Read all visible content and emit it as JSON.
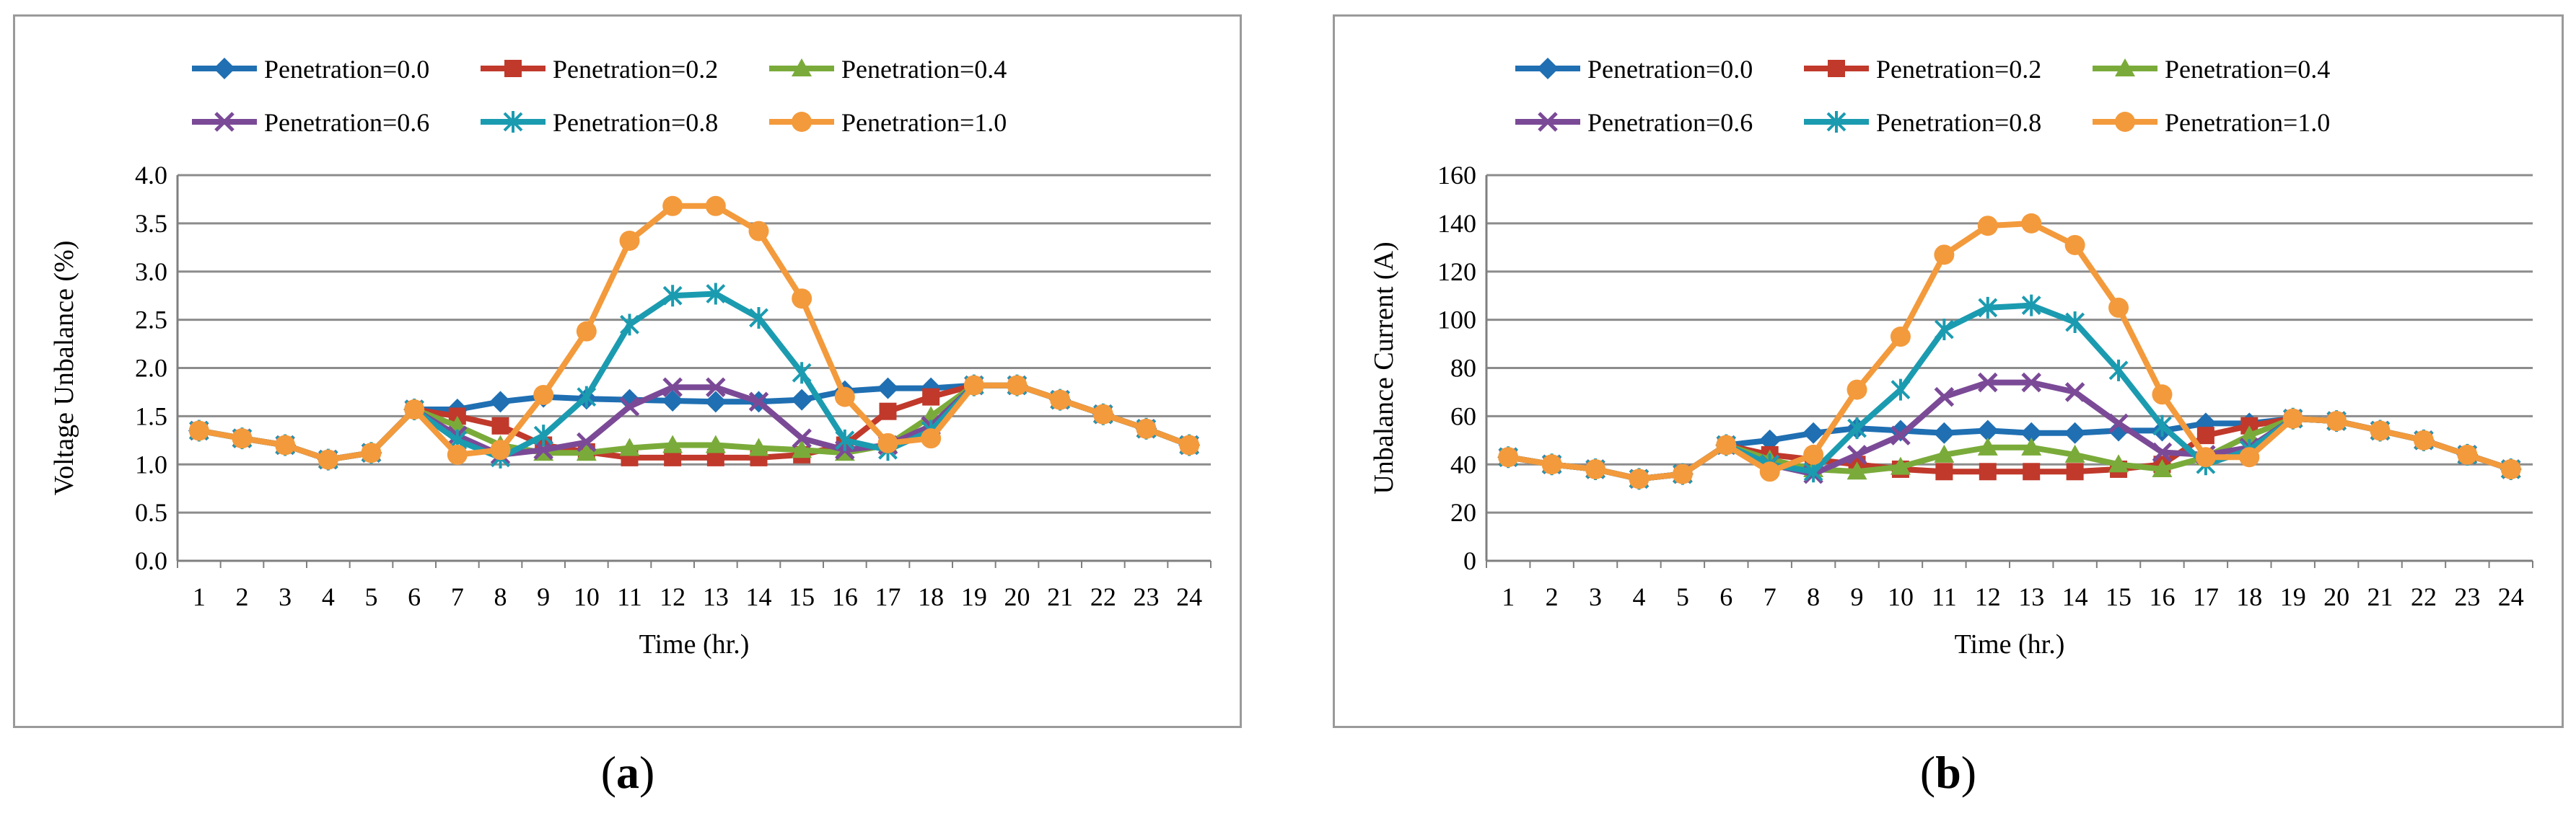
{
  "chart_data": [
    {
      "type": "line",
      "id": "a",
      "caption": "a",
      "xlabel": "Time (hr.)",
      "ylabel": "Voltage Unbalance (%)",
      "ylim": [
        0,
        4
      ],
      "yticks": [
        "0.0",
        "0.5",
        "1.0",
        "1.5",
        "2.0",
        "2.5",
        "3.0",
        "3.5",
        "4.0"
      ],
      "categories": [
        "1",
        "2",
        "3",
        "4",
        "5",
        "6",
        "7",
        "8",
        "9",
        "10",
        "11",
        "12",
        "13",
        "14",
        "15",
        "16",
        "17",
        "18",
        "19",
        "20",
        "21",
        "22",
        "23",
        "24"
      ],
      "grid": true,
      "legend_position": "top",
      "series": [
        {
          "name": "Penetration=0.0",
          "color": "#1f6fb2",
          "marker": "diamond",
          "values": [
            1.35,
            1.27,
            1.2,
            1.05,
            1.12,
            1.57,
            1.57,
            1.65,
            1.7,
            1.68,
            1.67,
            1.66,
            1.65,
            1.65,
            1.67,
            1.76,
            1.79,
            1.79,
            1.82,
            1.82,
            1.67,
            1.52,
            1.37,
            1.2
          ]
        },
        {
          "name": "Penetration=0.2",
          "color": "#c0392b",
          "marker": "square",
          "values": [
            1.35,
            1.27,
            1.2,
            1.05,
            1.12,
            1.57,
            1.5,
            1.4,
            1.2,
            1.13,
            1.07,
            1.07,
            1.07,
            1.07,
            1.1,
            1.2,
            1.55,
            1.7,
            1.82,
            1.82,
            1.67,
            1.52,
            1.37,
            1.2
          ]
        },
        {
          "name": "Penetration=0.4",
          "color": "#7aab3a",
          "marker": "triangle",
          "values": [
            1.35,
            1.27,
            1.2,
            1.05,
            1.12,
            1.57,
            1.4,
            1.2,
            1.12,
            1.12,
            1.17,
            1.2,
            1.2,
            1.17,
            1.15,
            1.12,
            1.2,
            1.5,
            1.82,
            1.82,
            1.67,
            1.52,
            1.37,
            1.2
          ]
        },
        {
          "name": "Penetration=0.6",
          "color": "#7b4a97",
          "marker": "x",
          "values": [
            1.35,
            1.27,
            1.2,
            1.05,
            1.12,
            1.57,
            1.3,
            1.1,
            1.15,
            1.23,
            1.6,
            1.8,
            1.8,
            1.65,
            1.27,
            1.15,
            1.2,
            1.4,
            1.82,
            1.82,
            1.67,
            1.52,
            1.37,
            1.2
          ]
        },
        {
          "name": "Penetration=0.8",
          "color": "#1b9bb0",
          "marker": "star",
          "values": [
            1.35,
            1.27,
            1.2,
            1.05,
            1.12,
            1.57,
            1.25,
            1.07,
            1.3,
            1.7,
            2.45,
            2.75,
            2.77,
            2.52,
            1.95,
            1.25,
            1.15,
            1.35,
            1.82,
            1.82,
            1.67,
            1.52,
            1.37,
            1.2
          ]
        },
        {
          "name": "Penetration=1.0",
          "color": "#f39a3c",
          "marker": "circle",
          "values": [
            1.35,
            1.27,
            1.2,
            1.05,
            1.12,
            1.57,
            1.1,
            1.15,
            1.72,
            2.38,
            3.32,
            3.68,
            3.68,
            3.42,
            2.72,
            1.7,
            1.22,
            1.27,
            1.82,
            1.82,
            1.67,
            1.52,
            1.37,
            1.2
          ]
        }
      ]
    },
    {
      "type": "line",
      "id": "b",
      "caption": "b",
      "xlabel": "Time (hr.)",
      "ylabel": "Unbalance Current (A)",
      "ylim": [
        0,
        160
      ],
      "yticks": [
        "0",
        "20",
        "40",
        "60",
        "80",
        "100",
        "120",
        "140",
        "160"
      ],
      "categories": [
        "1",
        "2",
        "3",
        "4",
        "5",
        "6",
        "7",
        "8",
        "9",
        "10",
        "11",
        "12",
        "13",
        "14",
        "15",
        "16",
        "17",
        "18",
        "19",
        "20",
        "21",
        "22",
        "23",
        "24"
      ],
      "grid": true,
      "legend_position": "top",
      "series": [
        {
          "name": "Penetration=0.0",
          "color": "#1f6fb2",
          "marker": "diamond",
          "values": [
            43,
            40,
            38,
            34,
            36,
            48,
            50,
            53,
            55,
            54,
            53,
            54,
            53,
            53,
            54,
            54,
            57,
            57,
            59,
            58,
            54,
            50,
            44,
            38
          ]
        },
        {
          "name": "Penetration=0.2",
          "color": "#c0392b",
          "marker": "square",
          "values": [
            43,
            40,
            38,
            34,
            36,
            48,
            44,
            42,
            40,
            38,
            37,
            37,
            37,
            37,
            38,
            40,
            52,
            56,
            59,
            58,
            54,
            50,
            44,
            38
          ]
        },
        {
          "name": "Penetration=0.4",
          "color": "#7aab3a",
          "marker": "triangle",
          "values": [
            43,
            40,
            38,
            34,
            36,
            48,
            42,
            38,
            37,
            39,
            44,
            47,
            47,
            44,
            40,
            38,
            43,
            52,
            59,
            58,
            54,
            50,
            44,
            38
          ]
        },
        {
          "name": "Penetration=0.6",
          "color": "#7b4a97",
          "marker": "x",
          "values": [
            43,
            40,
            38,
            34,
            36,
            48,
            40,
            36,
            44,
            52,
            68,
            74,
            74,
            70,
            57,
            45,
            44,
            47,
            59,
            58,
            54,
            50,
            44,
            38
          ]
        },
        {
          "name": "Penetration=0.8",
          "color": "#1b9bb0",
          "marker": "star",
          "values": [
            43,
            40,
            38,
            34,
            36,
            48,
            40,
            37,
            55,
            71,
            96,
            105,
            106,
            99,
            79,
            56,
            40,
            46,
            59,
            58,
            54,
            50,
            44,
            38
          ]
        },
        {
          "name": "Penetration=1.0",
          "color": "#f39a3c",
          "marker": "circle",
          "values": [
            43,
            40,
            38,
            34,
            36,
            48,
            37,
            44,
            71,
            93,
            127,
            139,
            140,
            131,
            105,
            69,
            43,
            43,
            59,
            58,
            54,
            50,
            44,
            38
          ]
        }
      ]
    }
  ]
}
